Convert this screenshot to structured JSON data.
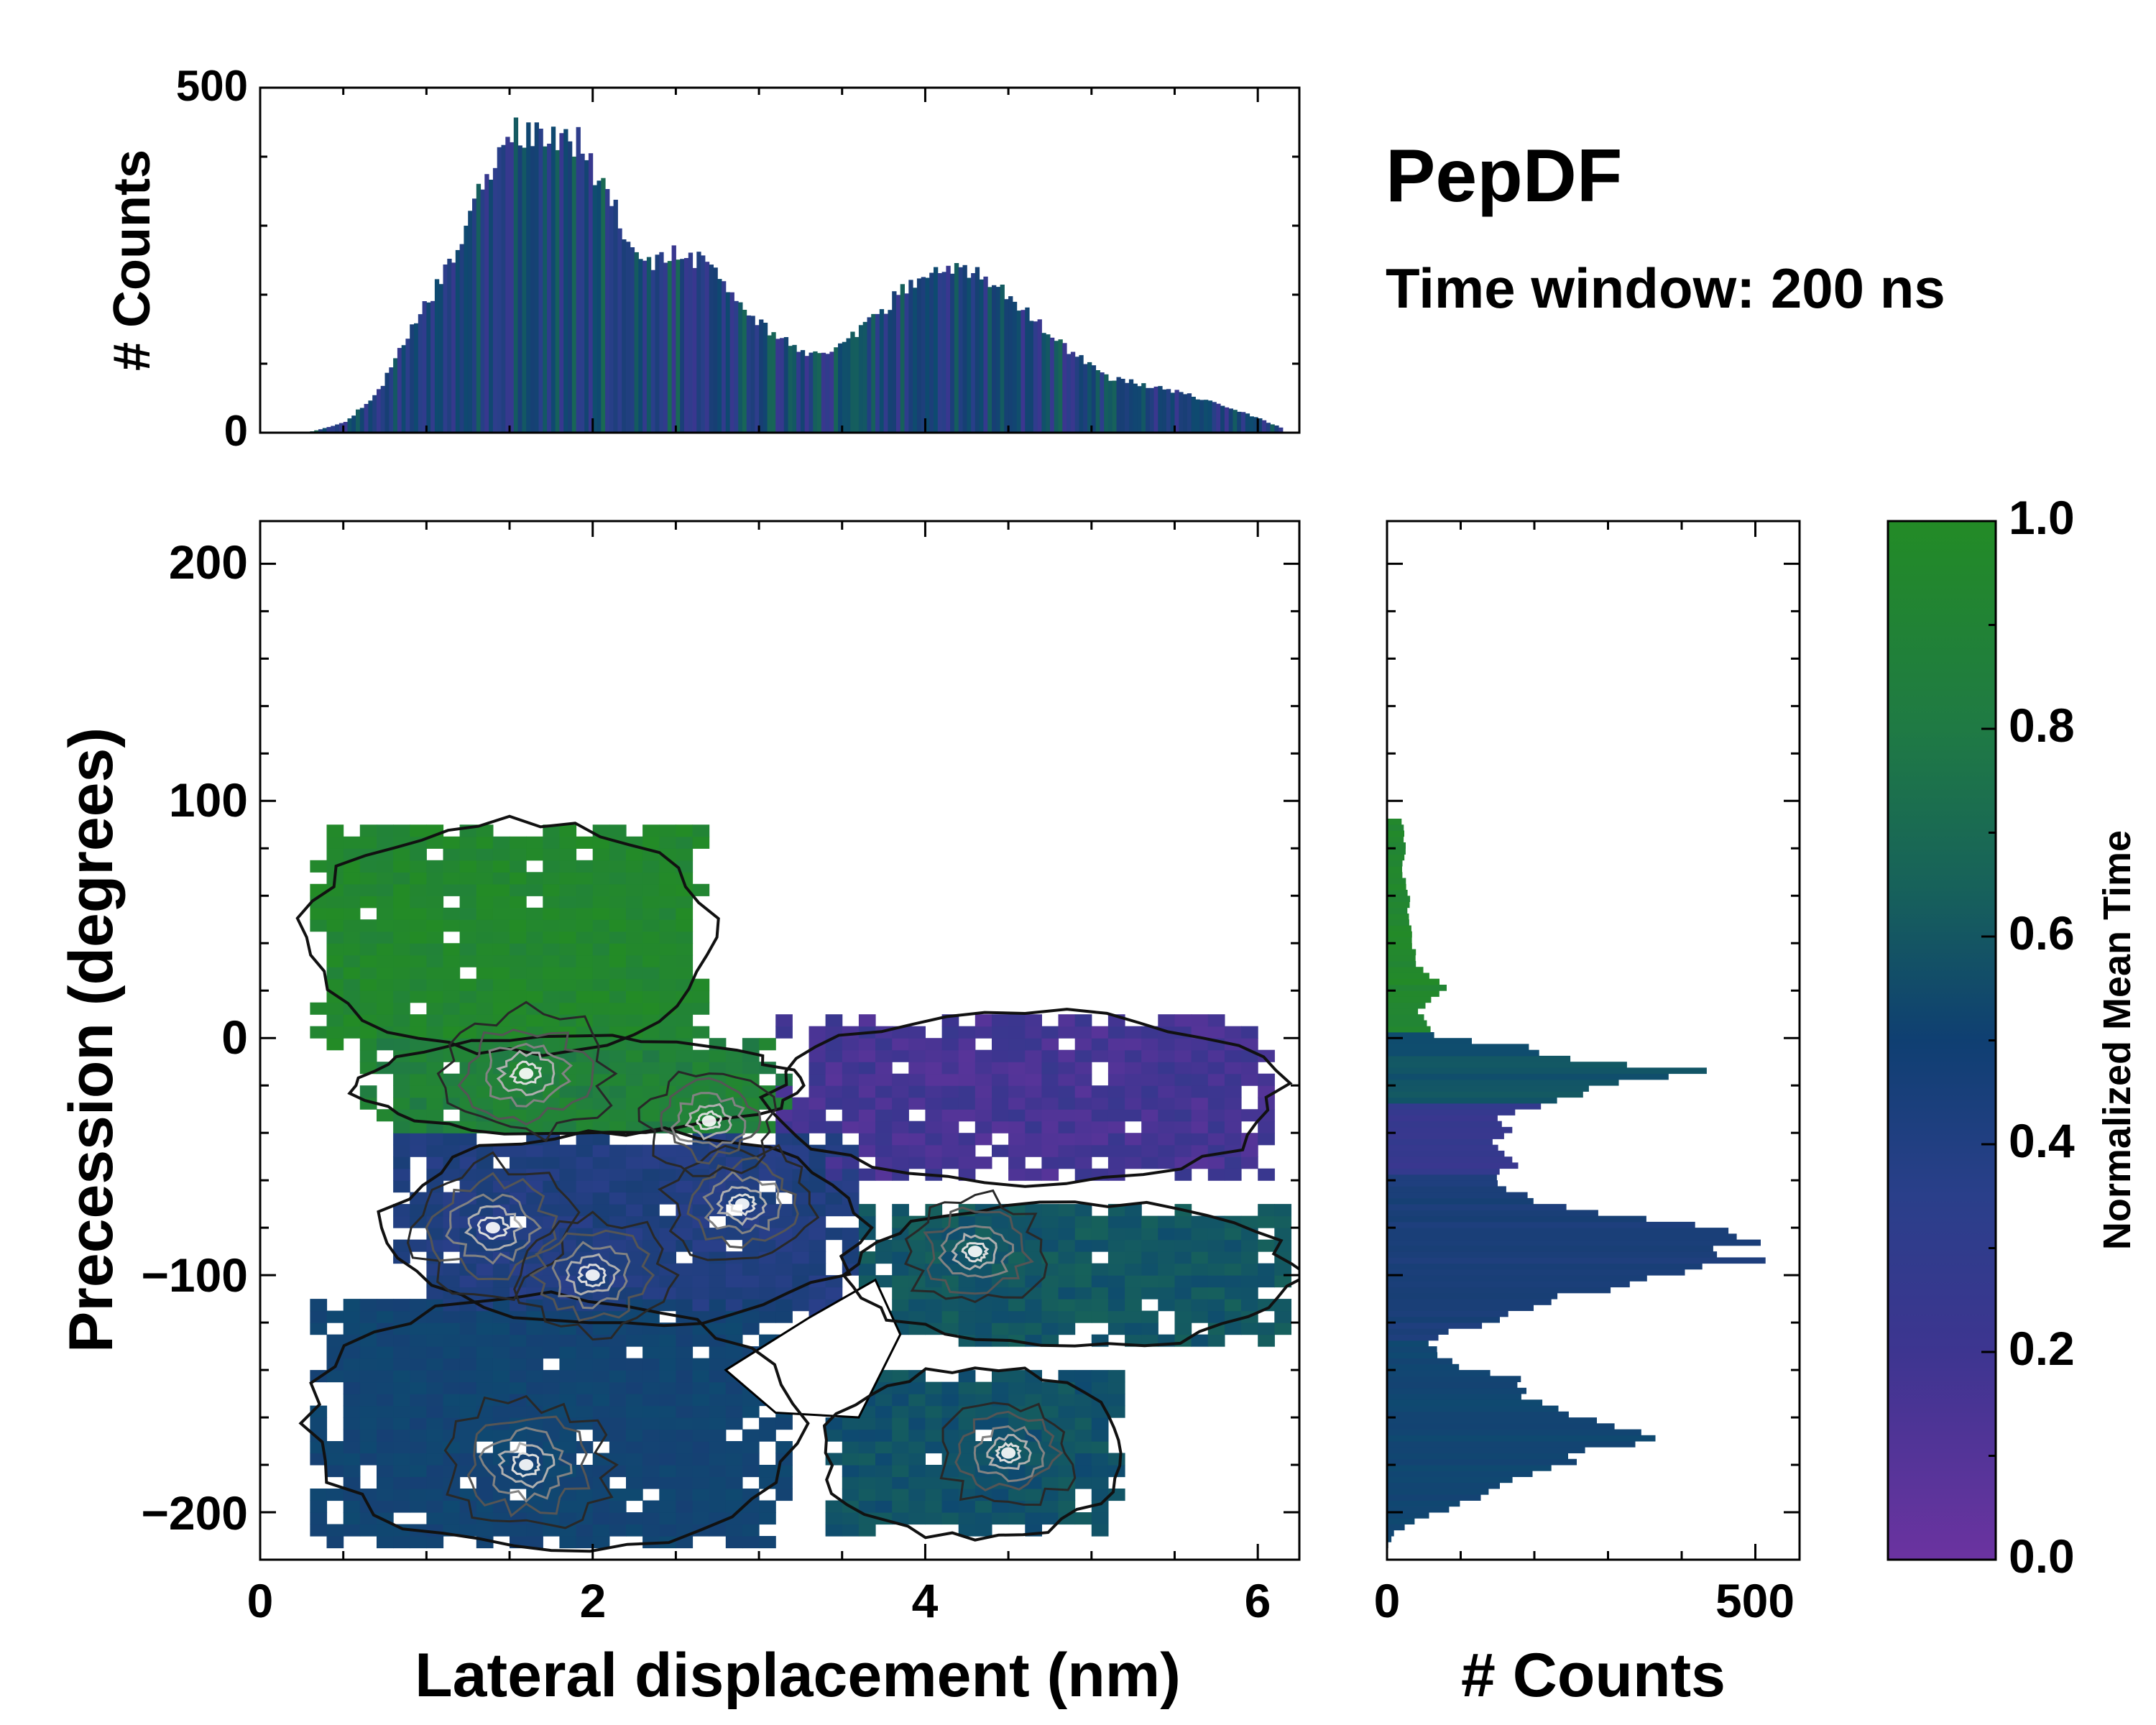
{
  "chart_data": {
    "type": "heatmap",
    "title": "PepDF",
    "subtitle": "Time window: 200 ns",
    "xlabel": "Lateral displacement (nm)",
    "ylabel": "Precession (degrees)",
    "xlim": [
      0,
      6.25
    ],
    "ylim": [
      -220,
      218
    ],
    "xticks": [
      0,
      2,
      4,
      6
    ],
    "xtick_labels": [
      "0",
      "2",
      "4",
      "6"
    ],
    "yticks": [
      200,
      100,
      0,
      -100,
      -200
    ],
    "ytick_labels": [
      "200",
      "100",
      "0",
      "−100",
      "−200"
    ],
    "colorbar": {
      "label": "Normalized Mean Time",
      "range": [
        0,
        1
      ],
      "ticks": [
        0.0,
        0.2,
        0.4,
        0.6,
        0.8,
        1.0
      ],
      "tick_labels": [
        "0.0",
        "0.2",
        "0.4",
        "0.6",
        "0.8",
        "1.0"
      ],
      "colors": [
        "#6b33a0",
        "#3d3590",
        "#2a3f8a",
        "#173f74",
        "#0e4a70",
        "#17625a",
        "#22803f",
        "#238b26"
      ]
    },
    "top_histogram": {
      "ylabel": "# Counts",
      "ylim": [
        0,
        500
      ],
      "yticks": [
        0,
        500
      ],
      "ytick_labels": [
        "0",
        "500"
      ],
      "x": [
        0.3,
        0.5,
        0.7,
        0.9,
        1.1,
        1.3,
        1.5,
        1.7,
        1.9,
        2.1,
        2.3,
        2.5,
        2.7,
        2.9,
        3.1,
        3.3,
        3.5,
        3.7,
        3.9,
        4.1,
        4.3,
        4.5,
        4.7,
        4.9,
        5.1,
        5.3,
        5.5,
        5.7,
        5.9,
        6.1
      ],
      "counts": [
        2,
        15,
        60,
        150,
        230,
        350,
        430,
        440,
        420,
        330,
        240,
        260,
        240,
        180,
        140,
        110,
        130,
        170,
        220,
        240,
        230,
        200,
        150,
        110,
        80,
        70,
        60,
        45,
        30,
        10
      ]
    },
    "right_histogram": {
      "xlabel": "# Counts",
      "xlim": [
        0,
        560
      ],
      "xticks": [
        0,
        500
      ],
      "xtick_labels": [
        "0",
        "500"
      ],
      "y": [
        90,
        80,
        70,
        60,
        50,
        40,
        30,
        20,
        10,
        0,
        -5,
        -10,
        -15,
        -20,
        -25,
        -30,
        -35,
        -40,
        -45,
        -50,
        -55,
        -60,
        -65,
        -70,
        -75,
        -80,
        -85,
        -90,
        -95,
        -100,
        -105,
        -110,
        -115,
        -120,
        -125,
        -130,
        -135,
        -140,
        -145,
        -150,
        -155,
        -160,
        -165,
        -170,
        -175,
        -180,
        -185,
        -190,
        -195,
        -200,
        -205,
        -210
      ],
      "counts": [
        20,
        25,
        20,
        30,
        28,
        35,
        40,
        80,
        45,
        60,
        180,
        260,
        420,
        310,
        260,
        200,
        150,
        170,
        140,
        150,
        170,
        140,
        160,
        200,
        300,
        390,
        510,
        450,
        500,
        420,
        320,
        250,
        200,
        150,
        90,
        60,
        70,
        100,
        170,
        180,
        200,
        240,
        300,
        380,
        290,
        240,
        200,
        150,
        120,
        80,
        40,
        10
      ]
    },
    "regions": [
      {
        "name": "upper-green",
        "mean_time": 0.95,
        "x_range": [
          0.3,
          2.7
        ],
        "y_range": [
          -5,
          90
        ]
      },
      {
        "name": "green-band",
        "mean_time": 0.88,
        "x_range": [
          0.6,
          3.2
        ],
        "y_range": [
          -40,
          0
        ]
      },
      {
        "name": "purple-lobe",
        "mean_time": 0.12,
        "x_range": [
          3.1,
          6.1
        ],
        "y_range": [
          -60,
          10
        ]
      },
      {
        "name": "blue-center",
        "mean_time": 0.35,
        "x_range": [
          0.8,
          3.6
        ],
        "y_range": [
          -120,
          -40
        ]
      },
      {
        "name": "teal-right",
        "mean_time": 0.65,
        "x_range": [
          3.6,
          6.2
        ],
        "y_range": [
          -130,
          -70
        ]
      },
      {
        "name": "blue-lower",
        "mean_time": 0.5,
        "x_range": [
          0.3,
          3.2
        ],
        "y_range": [
          -215,
          -110
        ]
      },
      {
        "name": "teal-lower-right",
        "mean_time": 0.62,
        "x_range": [
          3.4,
          5.2
        ],
        "y_range": [
          -210,
          -140
        ]
      }
    ],
    "density_peaks": [
      {
        "x": 1.6,
        "y": -15,
        "weight": 1.0
      },
      {
        "x": 1.4,
        "y": -80,
        "weight": 1.0
      },
      {
        "x": 2.0,
        "y": -100,
        "weight": 0.8
      },
      {
        "x": 2.9,
        "y": -70,
        "weight": 0.7
      },
      {
        "x": 1.6,
        "y": -180,
        "weight": 1.0
      },
      {
        "x": 4.3,
        "y": -90,
        "weight": 0.6
      },
      {
        "x": 4.5,
        "y": -175,
        "weight": 0.5
      },
      {
        "x": 2.7,
        "y": -35,
        "weight": 0.5
      }
    ]
  }
}
